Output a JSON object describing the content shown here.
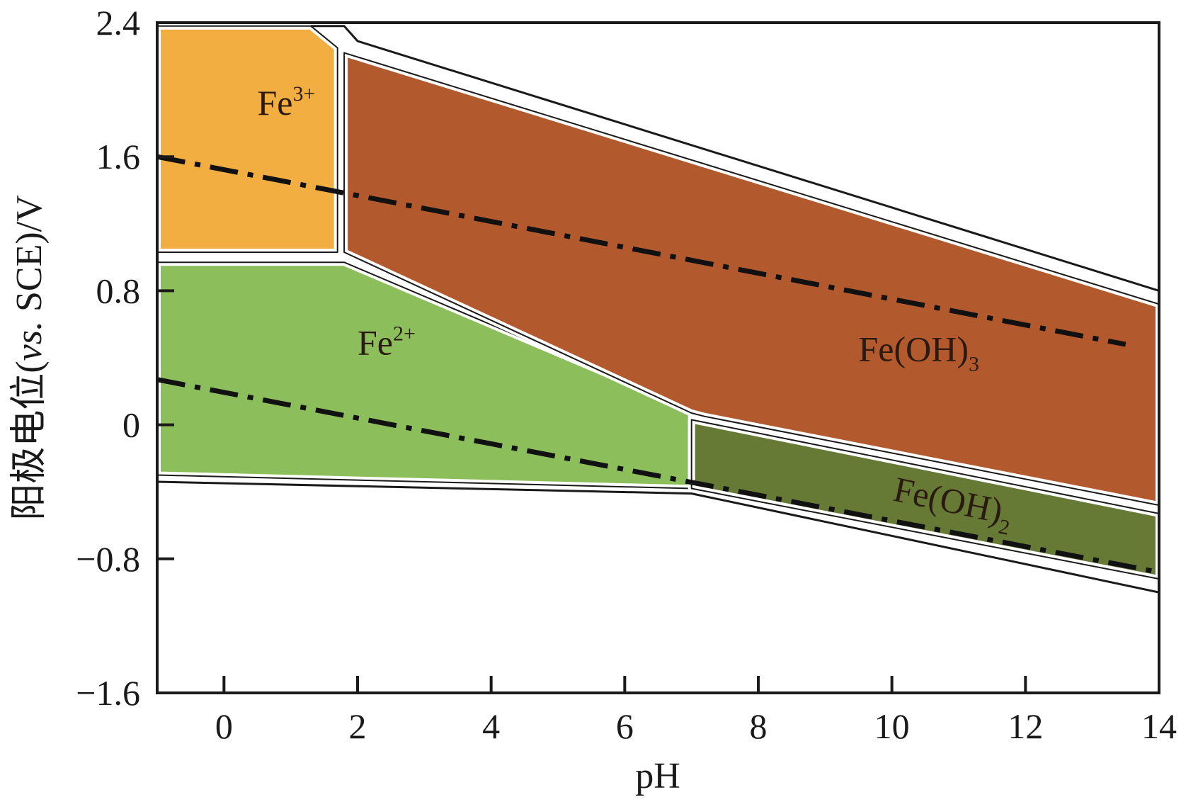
{
  "chart_data": {
    "type": "area",
    "title": "",
    "xlabel": "pH",
    "ylabel": "阳极电位(vs. SCE)/V",
    "ylabel_parts": {
      "prefix": "阳极电位(",
      "italic": "vs.",
      "suffix": " SCE)/V"
    },
    "xlim": [
      -1,
      14
    ],
    "ylim": [
      -1.6,
      2.4
    ],
    "x_ticks": [
      0,
      2,
      4,
      6,
      8,
      10,
      12,
      14
    ],
    "y_ticks": [
      -1.6,
      -0.8,
      0,
      0.8,
      1.6,
      2.4
    ],
    "x_tick_labels": [
      "0",
      "2",
      "4",
      "6",
      "8",
      "10",
      "12",
      "14"
    ],
    "y_tick_labels": [
      "−1.6",
      "−0.8",
      "0",
      "0.8",
      "1.6",
      "2.4"
    ],
    "regions": [
      {
        "id": "fe3",
        "label": {
          "base": "Fe",
          "sup": "3+",
          "sub": ""
        },
        "label_at": [
          0.5,
          1.85
        ],
        "color": "#F2AE40",
        "polygon": [
          [
            -1,
            2.38
          ],
          [
            1.3,
            2.38
          ],
          [
            1.7,
            2.25
          ],
          [
            1.7,
            1.03
          ],
          [
            -1,
            1.03
          ]
        ]
      },
      {
        "id": "fe2",
        "label": {
          "base": "Fe",
          "sup": "2+",
          "sub": ""
        },
        "label_at": [
          2.0,
          0.42
        ],
        "color": "#8CBF5C",
        "polygon": [
          [
            -1,
            0.97
          ],
          [
            1.8,
            0.97
          ],
          [
            7.0,
            0.09
          ],
          [
            7.0,
            -0.38
          ],
          [
            -1,
            -0.3
          ]
        ]
      },
      {
        "id": "feoh3",
        "label": {
          "base": "Fe(OH)",
          "sup": "",
          "sub": "3"
        },
        "label_at": [
          9.5,
          0.38
        ],
        "color": "#B25A2E",
        "polygon": [
          [
            1.8,
            2.22
          ],
          [
            14,
            0.72
          ],
          [
            14,
            -0.48
          ],
          [
            7.2,
            0.05
          ],
          [
            7.0,
            0.07
          ],
          [
            1.8,
            1.03
          ]
        ]
      },
      {
        "id": "feoh2",
        "label": {
          "base": "Fe(OH)",
          "sup": "",
          "sub": "2"
        },
        "label_at": [
          10.0,
          -0.45
        ],
        "label_rotate": 12,
        "color": "#667A36",
        "polygon": [
          [
            7.0,
            0.03
          ],
          [
            14,
            -0.53
          ],
          [
            14,
            -0.92
          ],
          [
            7.0,
            -0.38
          ]
        ]
      }
    ],
    "boundary_lines": [
      [
        [
          1.3,
          2.38
        ],
        [
          1.8,
          2.38
        ],
        [
          2.0,
          2.29
        ],
        [
          14,
          0.8
        ]
      ],
      [
        [
          -1,
          -0.34
        ],
        [
          7.0,
          -0.41
        ],
        [
          14,
          -1.0
        ]
      ]
    ],
    "reference_lines": [
      {
        "id": "o2-line",
        "style": "dash-dot",
        "points": [
          [
            -1,
            1.6
          ],
          [
            13.5,
            0.48
          ]
        ]
      },
      {
        "id": "h2-line",
        "style": "dash-dot",
        "points": [
          [
            -1,
            0.27
          ],
          [
            14,
            -0.88
          ]
        ]
      }
    ]
  }
}
